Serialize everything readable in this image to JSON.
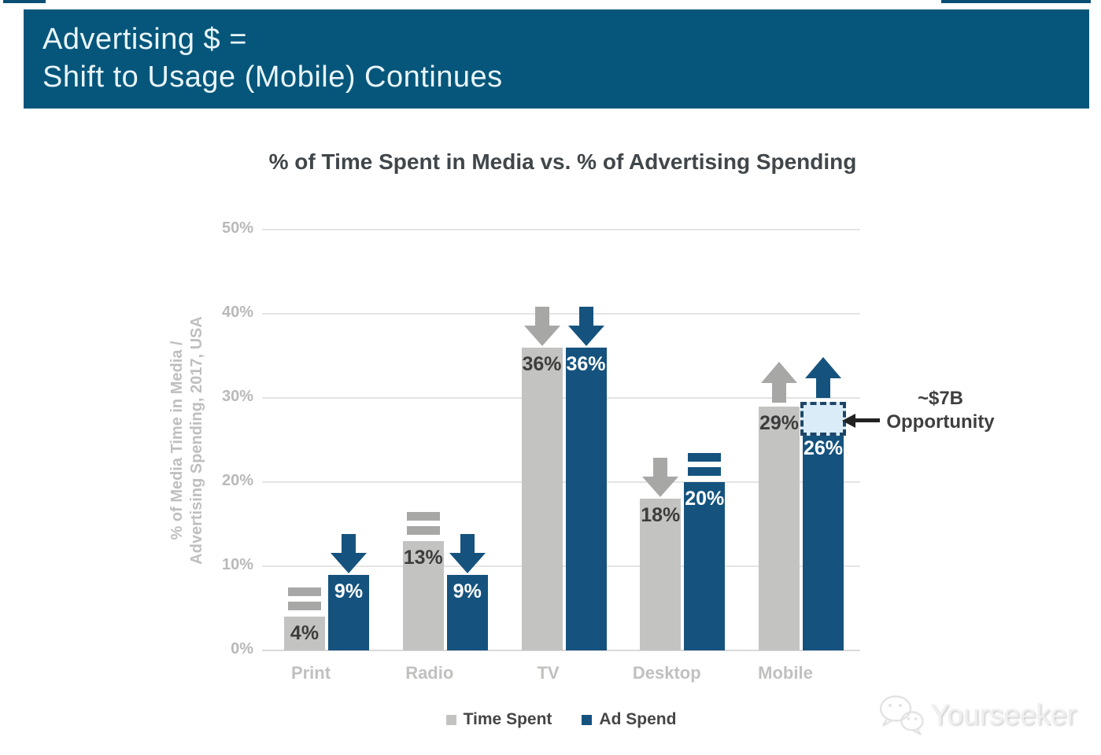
{
  "header": {
    "line1": "Advertising $ =",
    "line2": "Shift to Usage (Mobile) Continues",
    "background_color": "#05567a"
  },
  "chart_data": {
    "type": "bar",
    "title": "% of Time Spent in Media vs. % of Advertising Spending",
    "ylabel_line1": "% of Media Time in Media /",
    "ylabel_line2": "Advertising Spending, 2017, USA",
    "categories": [
      "Print",
      "Radio",
      "TV",
      "Desktop",
      "Mobile"
    ],
    "series": [
      {
        "name": "Time Spent",
        "color": "#c3c3c1",
        "trend_color": "#a7a7a6",
        "values": [
          4,
          13,
          36,
          18,
          29
        ],
        "labels": [
          "4%",
          "13%",
          "36%",
          "18%",
          "29%"
        ],
        "trend": [
          "flat",
          "flat",
          "down",
          "down",
          "up"
        ]
      },
      {
        "name": "Ad Spend",
        "color": "#15537e",
        "trend_color": "#15537e",
        "values": [
          9,
          9,
          36,
          20,
          26
        ],
        "labels": [
          "9%",
          "9%",
          "36%",
          "20%",
          "26%"
        ],
        "trend": [
          "down",
          "down",
          "down",
          "flat",
          "up"
        ]
      }
    ],
    "yticks": [
      "50%",
      "40%",
      "30%",
      "20%",
      "10%",
      "0%"
    ],
    "ylim": [
      0,
      50
    ],
    "grid": true,
    "legend_position": "bottom",
    "annotation": {
      "line1": "~$7B",
      "line2": "Opportunity",
      "target_category": "Mobile",
      "target_series": "Ad Spend",
      "box_from": 26,
      "box_to": 29.5,
      "box_fill": "#d9ecf8",
      "box_border": "#1e4668"
    }
  },
  "watermark": {
    "label": "Yourseeker",
    "logo": "wechat-logo-icon"
  }
}
